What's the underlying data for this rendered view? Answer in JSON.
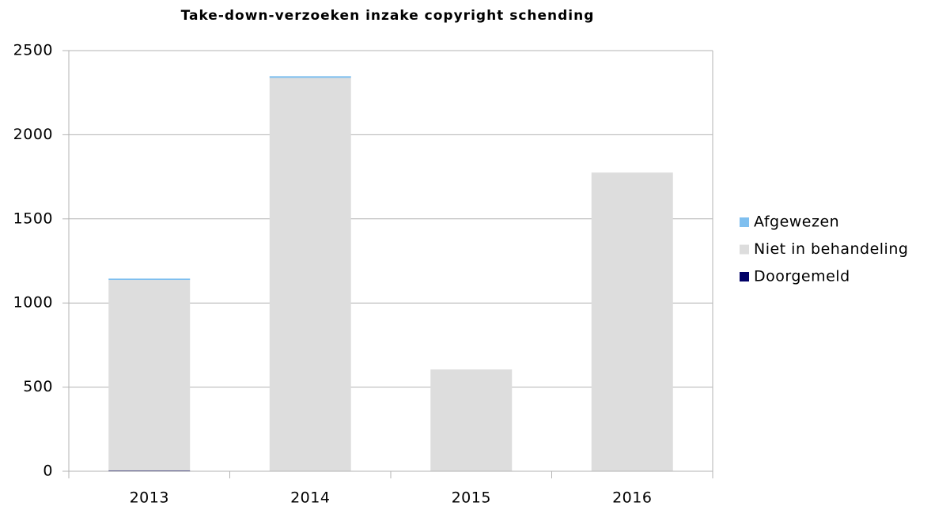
{
  "chart_data": {
    "type": "stacked_bar",
    "title": "Take-down-verzoeken inzake copyright schending",
    "categories": [
      "2013",
      "2014",
      "2015",
      "2016"
    ],
    "series": [
      {
        "name": "Doorgemeld",
        "color": "#000066",
        "values": [
          5,
          0,
          0,
          0
        ]
      },
      {
        "name": "Niet in behandeling",
        "color": "#dddddd",
        "values": [
          1132,
          2338,
          605,
          1775
        ]
      },
      {
        "name": "Afgewezen",
        "color": "#7fbfef",
        "values": [
          8,
          10,
          0,
          0
        ]
      }
    ],
    "ylim": [
      0,
      2500
    ],
    "yticks": [
      0,
      500,
      1000,
      1500,
      2000,
      2500
    ],
    "grid": true,
    "legend": "right"
  }
}
